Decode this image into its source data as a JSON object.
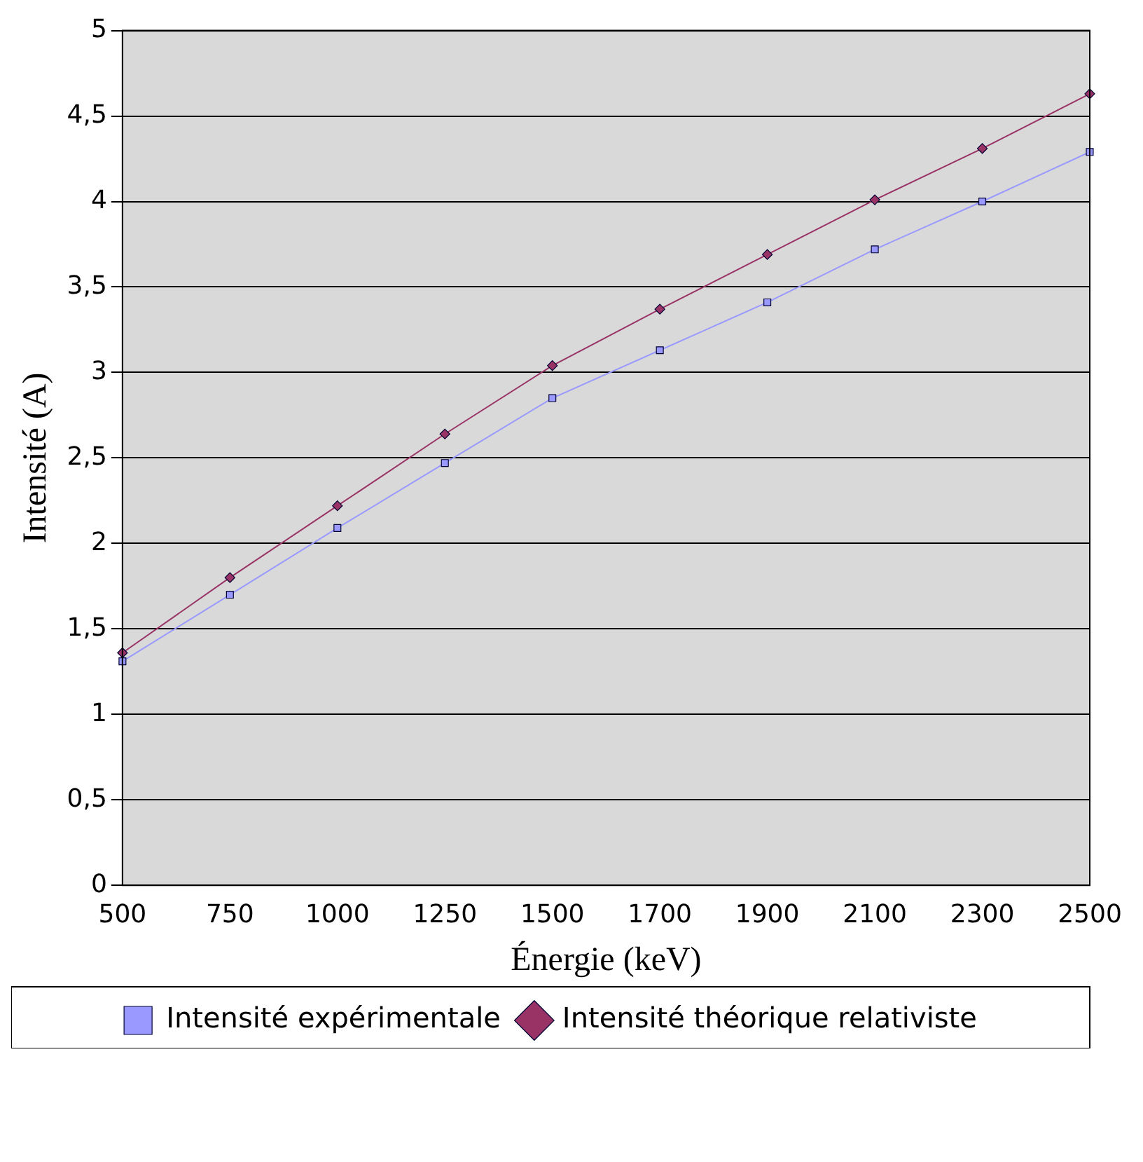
{
  "chart_data": {
    "type": "line",
    "xlabel": "Énergie (keV)",
    "ylabel": "Intensité (A)",
    "categories": [
      "500",
      "750",
      "1000",
      "1250",
      "1500",
      "1700",
      "1900",
      "2100",
      "2300",
      "2500"
    ],
    "series": [
      {
        "name": "Intensité expérimentale",
        "color": "#9999ff",
        "marker": "square",
        "values": [
          1.31,
          1.7,
          2.09,
          2.47,
          2.85,
          3.13,
          3.41,
          3.72,
          4.0,
          4.29
        ]
      },
      {
        "name": "Intensité théorique relativiste",
        "color": "#993366",
        "marker": "diamond",
        "values": [
          1.36,
          1.8,
          2.22,
          2.64,
          3.04,
          3.37,
          3.69,
          4.01,
          4.31,
          4.63
        ]
      }
    ],
    "ylim": [
      0,
      5
    ],
    "yticks": [
      0,
      {
        "value": 0.5,
        "label": "0,5"
      },
      1,
      {
        "value": 1.5,
        "label": "1,5"
      },
      2,
      {
        "value": 2.5,
        "label": "2,5"
      },
      3,
      {
        "value": 3.5,
        "label": "3,5"
      },
      4,
      {
        "value": 4.5,
        "label": "4,5"
      },
      5
    ],
    "grid": "y",
    "legend": "bottom"
  }
}
